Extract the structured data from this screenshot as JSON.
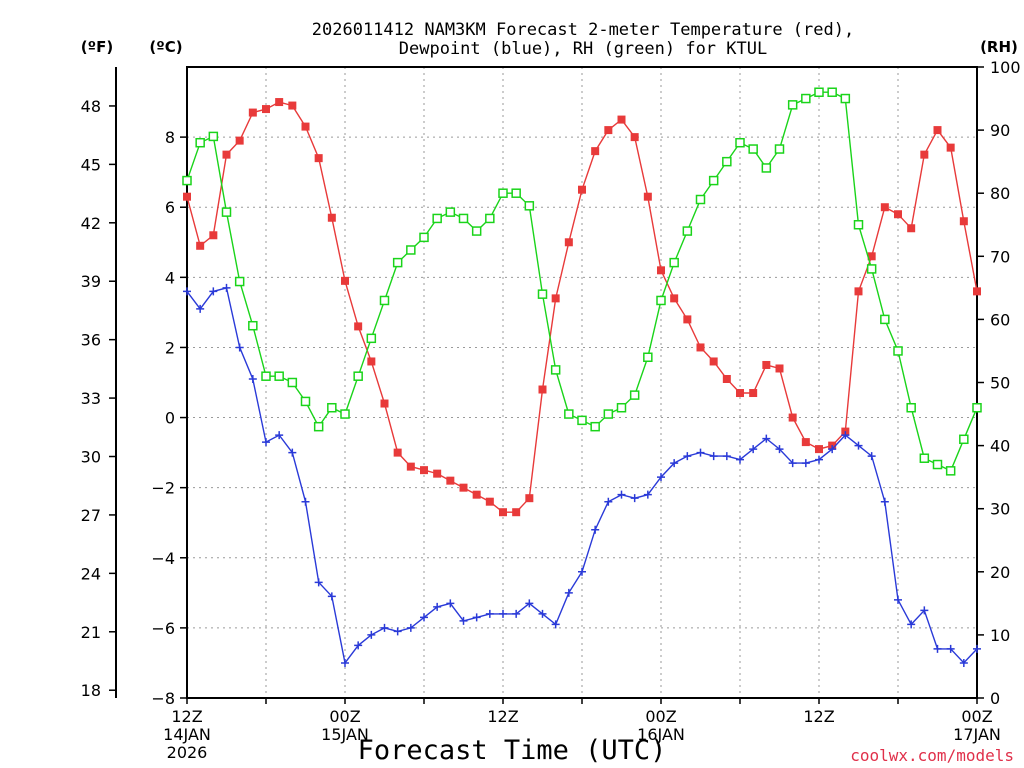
{
  "chart_data": {
    "type": "line",
    "title_line1": "2026011412 NAM3KM Forecast 2-meter Temperature (red),",
    "title_line2": "Dewpoint (blue), RH (green) for KTUL",
    "xlabel": "Forecast Time (UTC)",
    "credit": "coolwx.com/models",
    "units": {
      "fahrenheit": "(ºF)",
      "celsius": "(ºC)",
      "rh": "(RH)"
    },
    "x_hours_range": [
      0,
      60
    ],
    "celsius_range": [
      -8,
      10
    ],
    "rh_range": [
      0,
      100
    ],
    "celsius_ticks": [
      "−8",
      "−6",
      "−4",
      "−2",
      "0",
      "2",
      "4",
      "6",
      "8"
    ],
    "fahrenheit_ticks": [
      "18",
      "21",
      "24",
      "27",
      "30",
      "33",
      "36",
      "39",
      "42",
      "45",
      "48"
    ],
    "rh_ticks": [
      "0",
      "10",
      "20",
      "30",
      "40",
      "50",
      "60",
      "70",
      "80",
      "90",
      "100"
    ],
    "x_ticks": [
      {
        "hour": 0,
        "lines": [
          "12Z",
          "14JAN",
          "2026"
        ]
      },
      {
        "hour": 12,
        "lines": [
          "00Z",
          "15JAN"
        ]
      },
      {
        "hour": 24,
        "lines": [
          "12Z"
        ]
      },
      {
        "hour": 36,
        "lines": [
          "00Z",
          "16JAN"
        ]
      },
      {
        "hour": 48,
        "lines": [
          "12Z"
        ]
      },
      {
        "hour": 60,
        "lines": [
          "00Z",
          "17JAN"
        ]
      }
    ],
    "series": [
      {
        "name": "Temperature (°C)",
        "color": "#e83a3a",
        "marker": "filled-square",
        "axis": "celsius",
        "values": [
          6.3,
          4.9,
          5.2,
          7.5,
          7.9,
          8.7,
          8.8,
          9.0,
          8.9,
          8.3,
          7.4,
          5.7,
          3.9,
          2.6,
          1.6,
          0.4,
          -1.0,
          -1.4,
          -1.5,
          -1.6,
          -1.8,
          -2.0,
          -2.2,
          -2.4,
          -2.7,
          -2.7,
          -2.3,
          0.8,
          3.4,
          5.0,
          6.5,
          7.6,
          8.2,
          8.5,
          8.0,
          6.3,
          4.2,
          3.4,
          2.8,
          2.0,
          1.6,
          1.1,
          0.7,
          0.7,
          1.5,
          1.4,
          0.0,
          -0.7,
          -0.9,
          -0.8,
          -0.4,
          3.6,
          4.6,
          6.0,
          5.8,
          5.4,
          7.5,
          8.2,
          7.7,
          5.6,
          3.6
        ]
      },
      {
        "name": "Dewpoint (°C)",
        "color": "#2a3ad8",
        "marker": "plus",
        "axis": "celsius",
        "values": [
          3.6,
          3.1,
          3.6,
          3.7,
          2.0,
          1.1,
          -0.7,
          -0.5,
          -1.0,
          -2.4,
          -4.7,
          -5.1,
          -7.0,
          -6.5,
          -6.2,
          -6.0,
          -6.1,
          -6.0,
          -5.7,
          -5.4,
          -5.3,
          -5.8,
          -5.7,
          -5.6,
          -5.6,
          -5.6,
          -5.3,
          -5.6,
          -5.9,
          -5.0,
          -4.4,
          -3.2,
          -2.4,
          -2.2,
          -2.3,
          -2.2,
          -1.7,
          -1.3,
          -1.1,
          -1.0,
          -1.1,
          -1.1,
          -1.2,
          -0.9,
          -0.6,
          -0.9,
          -1.3,
          -1.3,
          -1.2,
          -0.9,
          -0.5,
          -0.8,
          -1.1,
          -2.4,
          -5.2,
          -5.9,
          -5.5,
          -6.6,
          -6.6,
          -7.0,
          -6.6
        ]
      },
      {
        "name": "RH (%)",
        "color": "#1ad41a",
        "marker": "open-square",
        "axis": "rh",
        "values": [
          82,
          88,
          89,
          77,
          66,
          59,
          51,
          51,
          50,
          47,
          43,
          46,
          45,
          51,
          57,
          63,
          69,
          71,
          73,
          76,
          77,
          76,
          74,
          76,
          80,
          80,
          78,
          64,
          52,
          45,
          44,
          43,
          45,
          46,
          48,
          54,
          63,
          69,
          74,
          79,
          82,
          85,
          88,
          87,
          84,
          87,
          94,
          95,
          96,
          96,
          95,
          75,
          68,
          60,
          55,
          46,
          38,
          37,
          36,
          41,
          46
        ]
      }
    ]
  }
}
